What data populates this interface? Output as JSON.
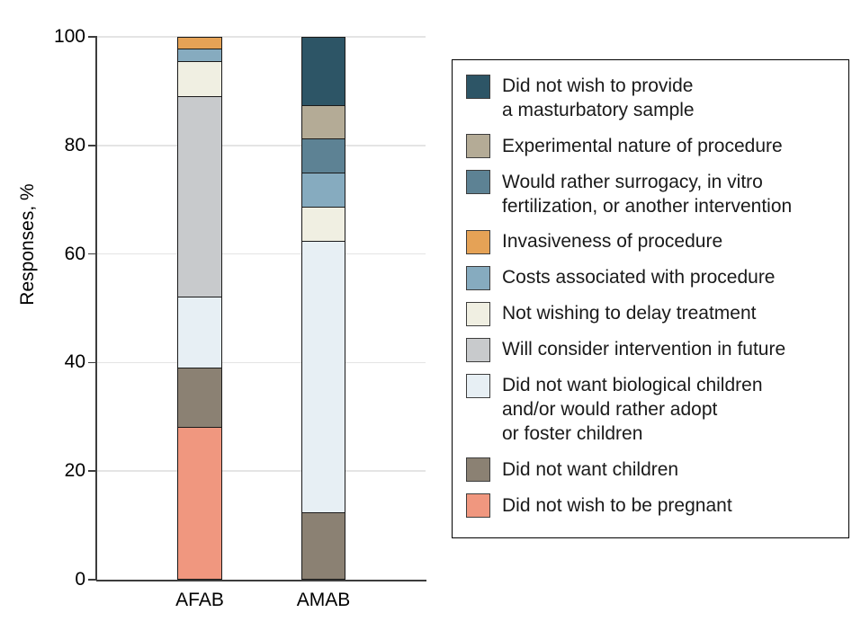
{
  "chart_data": {
    "type": "bar",
    "stacked": true,
    "title": "",
    "xlabel": "",
    "ylabel": "Responses, %",
    "ylim": [
      0,
      100
    ],
    "yticks": [
      0,
      20,
      40,
      60,
      80,
      100
    ],
    "grid": "horizontal-light",
    "legend_position": "right",
    "categories": [
      "AFAB",
      "AMAB"
    ],
    "series": [
      {
        "name": "Did not wish to be pregnant",
        "color": "#F0977F",
        "values": [
          28.2,
          0
        ]
      },
      {
        "name": "Did not want children",
        "color": "#8B8173",
        "values": [
          10.9,
          12.5
        ]
      },
      {
        "name": "Did not want biological children and/or would rather adopt or foster children",
        "legend_label": "Did not want biological children\nand/or would rather adopt\nor foster children",
        "color": "#E7EFF4",
        "values": [
          13.0,
          50.0
        ]
      },
      {
        "name": "Will consider intervention in future",
        "color": "#C8CACC",
        "values": [
          37.0,
          0
        ]
      },
      {
        "name": "Not wishing to delay treatment",
        "color": "#F0EFE2",
        "values": [
          6.5,
          6.25
        ]
      },
      {
        "name": "Costs associated with procedure",
        "color": "#86ABBF",
        "values": [
          2.2,
          6.25
        ]
      },
      {
        "name": "Invasiveness of procedure",
        "color": "#E5A256",
        "values": [
          2.2,
          0
        ]
      },
      {
        "name": "Would rather surrogacy, in vitro fertilization, or another intervention",
        "legend_label": "Would rather surrogacy, in vitro\nfertilization, or another intervention",
        "color": "#5D8294",
        "values": [
          0,
          6.25
        ]
      },
      {
        "name": "Experimental nature of procedure",
        "color": "#B4AB96",
        "values": [
          0,
          6.25
        ]
      },
      {
        "name": "Did not wish to provide a masturbatory sample",
        "legend_label": "Did not wish to provide\na masturbatory sample",
        "color": "#2D5566",
        "values": [
          0,
          12.5
        ]
      }
    ]
  }
}
